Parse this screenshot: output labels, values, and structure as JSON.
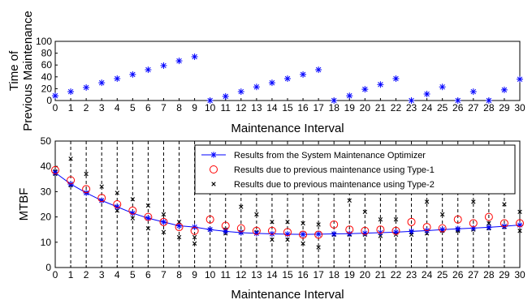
{
  "chart_data": [
    {
      "type": "scatter",
      "xlabel": "Maintenance Interval",
      "ylabel_lines": [
        "Time of",
        "Previous Maintenance"
      ],
      "xlim": [
        0,
        30
      ],
      "ylim": [
        0,
        100
      ],
      "xticks": [
        0,
        1,
        2,
        3,
        4,
        5,
        6,
        7,
        8,
        9,
        10,
        11,
        12,
        13,
        14,
        15,
        16,
        17,
        18,
        19,
        20,
        21,
        22,
        23,
        24,
        25,
        26,
        27,
        28,
        29,
        30
      ],
      "yticks": [
        0,
        20,
        40,
        60,
        80,
        100
      ],
      "color": "#0000ff",
      "marker": "star",
      "series": [
        {
          "x": [
            0,
            1,
            2,
            3,
            4,
            5,
            6,
            7,
            8,
            9,
            10,
            11,
            12,
            13,
            14,
            15,
            16,
            17,
            18,
            19,
            20,
            21,
            22,
            23,
            24,
            25,
            26,
            27,
            28,
            29,
            30
          ],
          "values": [
            8,
            15,
            22,
            30,
            37,
            44,
            52,
            59,
            67,
            74,
            0,
            7,
            15,
            23,
            30,
            37,
            44,
            52,
            0,
            8,
            19,
            27,
            37,
            0,
            11,
            23,
            0,
            15,
            0,
            18,
            36
          ]
        }
      ]
    },
    {
      "type": "line",
      "xlabel": "Maintenance Interval",
      "ylabel": "MTBF",
      "xlim": [
        0,
        30
      ],
      "ylim": [
        0,
        50
      ],
      "xticks": [
        0,
        1,
        2,
        3,
        4,
        5,
        6,
        7,
        8,
        9,
        10,
        11,
        12,
        13,
        14,
        15,
        16,
        17,
        18,
        19,
        20,
        21,
        22,
        23,
        24,
        25,
        26,
        27,
        28,
        29,
        30
      ],
      "yticks": [
        0,
        10,
        20,
        30,
        40,
        50
      ],
      "x": [
        0,
        1,
        2,
        3,
        4,
        5,
        6,
        7,
        8,
        9,
        10,
        11,
        12,
        13,
        14,
        15,
        16,
        17,
        18,
        19,
        20,
        21,
        22,
        23,
        24,
        25,
        26,
        27,
        28,
        29,
        30
      ],
      "series": [
        {
          "name": "Results from the System Maintenance Optimizer",
          "style": "line-star",
          "color": "#0000ff",
          "values": [
            37.5,
            33.0,
            29.5,
            26.5,
            24.0,
            21.5,
            19.5,
            18.0,
            16.5,
            16.0,
            15.0,
            14.3,
            13.8,
            13.5,
            13.3,
            13.2,
            13.1,
            13.2,
            13.3,
            13.4,
            13.6,
            13.8,
            14.0,
            14.3,
            14.6,
            15.0,
            15.3,
            15.6,
            15.9,
            16.3,
            16.8
          ]
        },
        {
          "name": "Results due to previous maintenance using Type-1",
          "style": "circle",
          "color": "#ff0000",
          "values": [
            38.5,
            34.5,
            31.0,
            27.5,
            25.0,
            22.5,
            20.0,
            18.0,
            16.0,
            14.5,
            19.0,
            16.5,
            15.5,
            14.5,
            14.5,
            14.0,
            13.0,
            13.0,
            17.0,
            15.0,
            14.5,
            15.0,
            14.5,
            18.0,
            16.0,
            15.5,
            19.0,
            17.5,
            20.0,
            17.5,
            17.5
          ]
        },
        {
          "name": "Results due to previous maintenance using Type-2",
          "style": "x",
          "color": "#000000",
          "values_a": [
            38,
            43,
            37,
            32,
            29.5,
            27,
            24.5,
            21,
            18,
            12,
            15,
            15,
            24,
            21,
            18,
            18,
            17.5,
            17,
            13,
            26.5,
            22,
            19,
            19,
            14,
            26,
            21,
            15,
            26,
            17.5,
            25,
            22
          ],
          "values_b": [
            37,
            32.5,
            29.5,
            26.5,
            22.5,
            19.5,
            15.5,
            14,
            12,
            9.5,
            15,
            13.5,
            14,
            14,
            11,
            11,
            9.5,
            8,
            13,
            13,
            13,
            12.5,
            13,
            13,
            13.5,
            14.5,
            14.5,
            15,
            15.5,
            16,
            14.5
          ]
        }
      ],
      "legend_position": "top-right"
    }
  ]
}
